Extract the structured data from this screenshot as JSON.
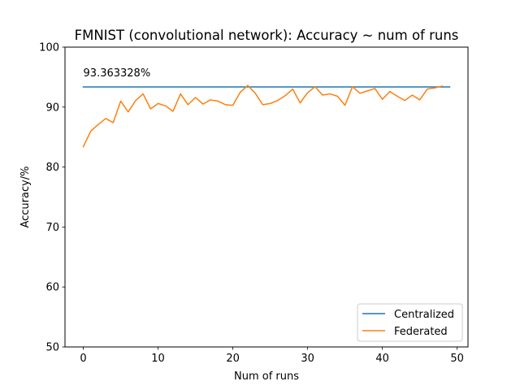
{
  "chart_data": {
    "type": "line",
    "title": "FMNIST (convolutional network): Accuracy ~ num of runs",
    "xlabel": "Num of runs",
    "ylabel": "Accuracy/%",
    "xlim": [
      -2.45,
      51.45
    ],
    "ylim": [
      50,
      100
    ],
    "xticks": [
      0,
      10,
      20,
      30,
      40,
      50
    ],
    "yticks": [
      50,
      60,
      70,
      80,
      90,
      100
    ],
    "grid": false,
    "legend_position": "lower-right",
    "annotation": {
      "text": "93.363328%",
      "x": 0,
      "y": 95.1
    },
    "series": [
      {
        "name": "Centralized",
        "color": "#1f77b4",
        "x": [
          0,
          49
        ],
        "y": [
          93.36,
          93.36
        ]
      },
      {
        "name": "Federated",
        "color": "#ff7f0e",
        "x": [
          0,
          1,
          2,
          3,
          4,
          5,
          6,
          7,
          8,
          9,
          10,
          11,
          12,
          13,
          14,
          15,
          16,
          17,
          18,
          19,
          20,
          21,
          22,
          23,
          24,
          25,
          26,
          27,
          28,
          29,
          30,
          31,
          32,
          33,
          34,
          35,
          36,
          37,
          38,
          39,
          40,
          41,
          42,
          43,
          44,
          45,
          46,
          47,
          48
        ],
        "y": [
          83.4,
          86.0,
          87.1,
          88.1,
          87.4,
          91.0,
          89.2,
          91.1,
          92.2,
          89.7,
          90.6,
          90.2,
          89.3,
          92.2,
          90.4,
          91.6,
          90.5,
          91.2,
          91.0,
          90.4,
          90.3,
          92.5,
          93.6,
          92.3,
          90.4,
          90.6,
          91.1,
          91.9,
          93.0,
          90.7,
          92.4,
          93.4,
          92.0,
          92.2,
          91.8,
          90.3,
          93.4,
          92.3,
          92.7,
          93.1,
          91.3,
          92.6,
          91.8,
          91.1,
          92.0,
          91.2,
          93.0,
          93.2,
          93.5
        ]
      }
    ]
  }
}
